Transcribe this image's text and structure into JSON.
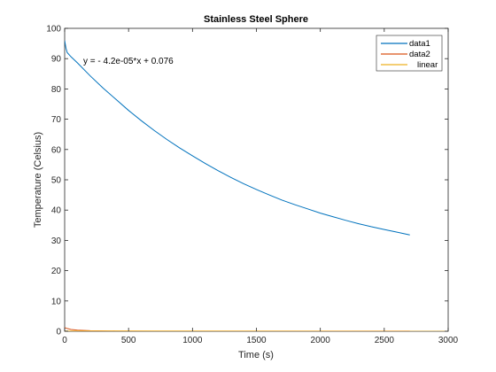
{
  "chart_data": {
    "type": "line",
    "title": "Stainless Steel Sphere",
    "xlabel": "Time (s)",
    "ylabel": "Temperature (Celsius)",
    "xlim": [
      0,
      3000
    ],
    "ylim": [
      0,
      100
    ],
    "xticks": [
      0,
      500,
      1000,
      1500,
      2000,
      2500,
      3000
    ],
    "yticks": [
      0,
      10,
      20,
      30,
      40,
      50,
      60,
      70,
      80,
      90,
      100
    ],
    "xtick_labels": [
      "0",
      "500",
      "1000",
      "1500",
      "2000",
      "2500",
      "3000"
    ],
    "ytick_labels": [
      "0",
      "10",
      "20",
      "30",
      "40",
      "50",
      "60",
      "70",
      "80",
      "90",
      "100"
    ],
    "grid": false,
    "legend_position": "top-right",
    "annotation": "y = - 4.2e-05*x + 0.076",
    "series": [
      {
        "name": "data1",
        "color": "#0072BD",
        "x": [
          0,
          10,
          20,
          50,
          100,
          200,
          300,
          400,
          500,
          600,
          700,
          800,
          900,
          1000,
          1100,
          1200,
          1300,
          1400,
          1500,
          1600,
          1700,
          1800,
          1900,
          2000,
          2100,
          2200,
          2300,
          2400,
          2500,
          2600,
          2700
        ],
        "y": [
          96,
          93.5,
          92,
          90.6,
          88.6,
          84.3,
          80.3,
          76.6,
          72.9,
          69.5,
          66.3,
          63.3,
          60.5,
          57.9,
          55.4,
          53.0,
          50.8,
          48.7,
          46.8,
          45.0,
          43.3,
          41.8,
          40.4,
          39.0,
          37.8,
          36.6,
          35.5,
          34.5,
          33.6,
          32.7,
          31.8
        ]
      },
      {
        "name": "data2",
        "color": "#D95319",
        "x": [
          0,
          20,
          50,
          100,
          200,
          400,
          700,
          1000,
          1500,
          2000,
          2500,
          2700
        ],
        "y": [
          1.2,
          0.9,
          0.6,
          0.35,
          0.18,
          0.08,
          0.04,
          0.03,
          0.02,
          0.02,
          0.02,
          0.02
        ]
      },
      {
        "name": "linear",
        "color": "#EDB120",
        "x": [
          0,
          3000
        ],
        "y": [
          0.076,
          -0.05
        ]
      }
    ]
  }
}
